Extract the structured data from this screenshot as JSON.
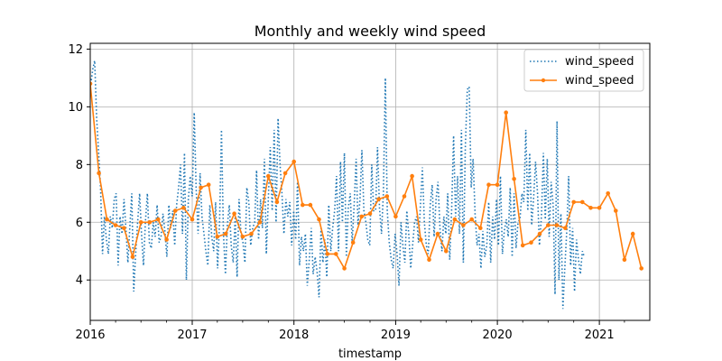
{
  "chart_data": {
    "type": "line",
    "title": "Monthly and weekly wind speed",
    "xlabel": "timestamp",
    "ylabel": "",
    "x_tick_labels": [
      "2016",
      "2017",
      "2018",
      "2019",
      "2020",
      "2021"
    ],
    "y_tick_labels": [
      "4",
      "6",
      "8",
      "10",
      "12"
    ],
    "y_ticks": [
      4,
      6,
      8,
      10,
      12
    ],
    "xlim": [
      "2016-01-01",
      "2021-07-01"
    ],
    "ylim": [
      2.6,
      12.2
    ],
    "grid": true,
    "legend_position": "top-right",
    "colors": {
      "weekly": "#1f77b4",
      "monthly": "#ff7f0e"
    },
    "series": [
      {
        "name": "wind_speed",
        "style": "dotted",
        "frequency": "weekly",
        "x_start": "2016-01-03",
        "x_step_days": 7,
        "values": [
          10.8,
          11.3,
          11.6,
          9.6,
          8.4,
          7.2,
          4.9,
          6.2,
          5.4,
          4.9,
          6.2,
          5.8,
          6.8,
          7.0,
          4.5,
          6.2,
          5.6,
          6.8,
          5.8,
          4.6,
          5.8,
          7.0,
          3.6,
          4.9,
          6.0,
          7.0,
          5.6,
          4.5,
          6.0,
          7.0,
          5.3,
          5.1,
          6.0,
          5.5,
          6.6,
          5.3,
          5.5,
          6.3,
          5.7,
          4.8,
          6.6,
          5.8,
          6.4,
          5.2,
          6.6,
          7.2,
          8.0,
          5.6,
          8.4,
          4.0,
          6.8,
          7.6,
          6.9,
          9.8,
          7.2,
          5.6,
          7.7,
          6.2,
          5.6,
          5.0,
          4.5,
          6.6,
          5.5,
          5.0,
          6.7,
          4.4,
          6.0,
          9.2,
          5.6,
          4.2,
          5.9,
          6.6,
          5.2,
          4.6,
          6.2,
          4.1,
          6.8,
          5.6,
          5.3,
          4.6,
          7.2,
          6.7,
          5.2,
          5.8,
          6.0,
          7.8,
          5.4,
          6.8,
          5.8,
          8.2,
          4.9,
          6.8,
          8.6,
          6.4,
          9.2,
          6.0,
          9.6,
          8.0,
          7.0,
          5.6,
          6.8,
          6.2,
          6.7,
          5.2,
          6.4,
          5.4,
          7.4,
          4.5,
          5.5,
          5.0,
          5.6,
          3.8,
          4.7,
          5.8,
          4.2,
          4.8,
          4.3,
          3.4,
          5.8,
          4.6,
          5.4,
          4.1,
          6.6,
          5.0,
          5.8,
          6.4,
          7.6,
          5.0,
          8.1,
          6.0,
          8.4,
          4.8,
          6.5,
          7.0,
          5.3,
          6.6,
          8.2,
          5.9,
          6.8,
          8.5,
          6.4,
          6.0,
          5.4,
          5.2,
          8.0,
          6.4,
          6.4,
          8.6,
          6.5,
          5.6,
          7.0,
          11.0,
          6.4,
          5.3,
          4.7,
          4.4,
          5.6,
          4.9,
          3.8,
          6.0,
          5.2,
          4.6,
          6.4,
          5.6,
          4.4,
          5.2,
          6.0,
          6.2,
          5.3,
          6.6,
          7.9,
          6.0,
          5.2,
          4.9,
          6.6,
          7.3,
          5.5,
          6.8,
          7.4,
          5.8,
          5.0,
          6.2,
          5.6,
          7.0,
          4.7,
          6.5,
          9.0,
          6.2,
          7.6,
          5.6,
          9.2,
          4.6,
          8.6,
          10.6,
          10.7,
          7.2,
          8.2,
          6.3,
          5.2,
          5.6,
          4.4,
          5.7,
          4.8,
          5.2,
          6.7,
          4.6,
          6.2,
          5.4,
          6.8,
          5.2,
          7.6,
          4.9,
          5.7,
          6.1,
          5.5,
          7.2,
          4.8,
          7.0,
          5.1,
          6.0,
          6.1,
          7.0,
          6.7,
          9.2,
          6.4,
          8.4,
          5.9,
          6.8,
          8.1,
          7.0,
          5.2,
          6.2,
          8.4,
          6.1,
          8.2,
          5.5,
          7.4,
          6.6,
          3.5,
          9.5,
          4.0,
          6.3,
          3.0,
          4.4,
          5.7,
          7.6,
          4.5,
          5.8,
          3.6,
          5.4,
          4.7,
          4.2,
          5.0,
          4.8
        ]
      },
      {
        "name": "wind_speed",
        "style": "solid-marker",
        "frequency": "monthly",
        "x_start": "2016-01-01",
        "x_step_months": 1,
        "values": [
          10.8,
          7.7,
          6.1,
          5.9,
          5.8,
          4.8,
          6.0,
          6.0,
          6.1,
          5.4,
          6.4,
          6.5,
          6.1,
          7.2,
          7.3,
          5.5,
          5.6,
          6.3,
          5.5,
          5.6,
          6.0,
          7.6,
          6.7,
          7.7,
          8.1,
          6.6,
          6.6,
          6.1,
          4.9,
          4.9,
          4.4,
          5.3,
          6.2,
          6.3,
          6.8,
          6.9,
          6.2,
          6.9,
          7.6,
          5.4,
          4.7,
          5.6,
          5.0,
          6.1,
          5.9,
          6.1,
          5.8,
          7.3,
          7.3,
          9.8,
          7.5,
          5.2,
          5.3,
          5.6,
          5.9,
          5.9,
          5.8,
          6.7,
          6.7,
          6.5,
          6.5,
          7.0,
          6.4,
          4.7,
          5.6,
          4.4
        ]
      }
    ]
  }
}
